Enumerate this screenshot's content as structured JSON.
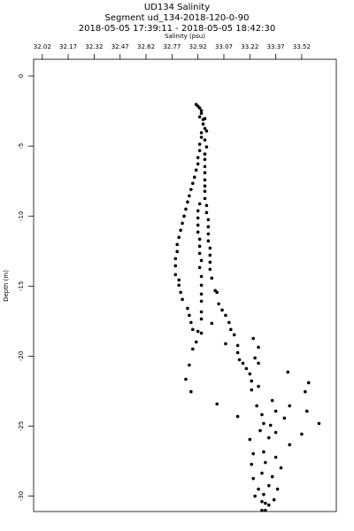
{
  "chart_data": {
    "type": "scatter",
    "title": "UD134 Salinity",
    "subtitle": [
      "Segment ud_134-2018-120-0-90",
      "2018-05-05 17:39:11 - 2018-05-05 18:42:30"
    ],
    "x_label": "Salinity (psu)",
    "y_label": "Depth (m)",
    "color": "#000000",
    "xlim": [
      31.97,
      33.72
    ],
    "ylim": [
      -31.1,
      1.2
    ],
    "xticks": [
      32.02,
      32.17,
      32.32,
      32.47,
      32.62,
      32.77,
      32.92,
      33.07,
      33.22,
      33.37,
      33.52
    ],
    "yticks": [
      0,
      -5,
      -10,
      -15,
      -20,
      -25,
      -30
    ],
    "x": [
      32.91,
      32.92,
      32.93,
      32.94,
      32.94,
      32.93,
      32.95,
      32.96,
      32.95,
      32.96,
      32.94,
      32.97,
      32.94,
      32.96,
      32.93,
      32.97,
      32.93,
      32.96,
      32.92,
      32.96,
      32.92,
      32.96,
      32.91,
      32.96,
      32.9,
      32.96,
      32.89,
      32.96,
      32.88,
      32.96,
      32.87,
      32.96,
      32.86,
      32.93,
      32.97,
      32.85,
      32.92,
      32.97,
      32.84,
      32.92,
      32.98,
      32.83,
      32.92,
      32.98,
      32.82,
      32.92,
      32.98,
      32.81,
      32.93,
      32.98,
      32.8,
      32.93,
      32.99,
      32.8,
      32.93,
      32.99,
      32.79,
      32.94,
      32.99,
      32.79,
      32.93,
      32.99,
      32.79,
      32.94,
      33.0,
      32.81,
      32.81,
      32.94,
      33.02,
      32.82,
      32.94,
      33.03,
      32.83,
      32.94,
      33.04,
      32.86,
      33.06,
      32.94,
      32.87,
      33.08,
      32.94,
      32.88,
      33.1,
      33.0,
      32.89,
      33.11,
      32.92,
      32.94,
      33.13,
      33.24,
      32.91,
      33.15,
      33.27,
      33.08,
      32.89,
      33.15,
      33.25,
      33.16,
      32.87,
      33.18,
      33.27,
      33.2,
      33.22,
      33.44,
      32.85,
      33.23,
      33.56,
      33.27,
      32.88,
      33.23,
      33.54,
      33.35,
      33.03,
      33.26,
      33.45,
      33.37,
      33.55,
      33.15,
      33.29,
      33.42,
      33.3,
      33.34,
      33.62,
      33.28,
      33.37,
      33.52,
      33.22,
      33.33,
      33.45,
      33.24,
      33.3,
      33.37,
      33.31,
      33.4,
      33.23,
      33.29,
      33.35,
      33.24,
      33.33,
      33.27,
      33.38,
      33.3,
      33.25,
      33.36,
      33.29,
      33.31,
      33.33,
      33.29,
      33.31
    ],
    "values": [
      -2.03,
      -2.15,
      -2.28,
      -2.47,
      -2.66,
      -2.91,
      -3.1,
      -3.04,
      -3.42,
      -3.74,
      -4.05,
      -3.92,
      -4.37,
      -4.56,
      -4.87,
      -5.06,
      -5.32,
      -5.57,
      -5.82,
      -5.95,
      -6.27,
      -6.46,
      -6.71,
      -6.9,
      -7.22,
      -7.41,
      -7.66,
      -7.85,
      -8.1,
      -8.23,
      -8.55,
      -8.74,
      -8.99,
      -9.12,
      -9.24,
      -9.5,
      -9.62,
      -9.75,
      -10.0,
      -10.13,
      -10.25,
      -10.51,
      -10.64,
      -10.76,
      -11.01,
      -11.14,
      -11.27,
      -11.52,
      -11.65,
      -11.77,
      -12.03,
      -12.15,
      -12.28,
      -12.53,
      -12.66,
      -12.79,
      -13.04,
      -13.17,
      -13.29,
      -13.55,
      -13.67,
      -13.8,
      -14.18,
      -14.31,
      -14.43,
      -14.56,
      -14.94,
      -14.94,
      -15.32,
      -15.45,
      -15.57,
      -15.45,
      -15.95,
      -16.08,
      -16.27,
      -16.59,
      -16.71,
      -16.84,
      -17.09,
      -17.09,
      -17.35,
      -17.6,
      -17.6,
      -17.66,
      -18.1,
      -18.1,
      -18.23,
      -18.36,
      -18.48,
      -18.74,
      -18.99,
      -19.24,
      -19.37,
      -19.12,
      -19.5,
      -19.75,
      -20.13,
      -20.26,
      -20.64,
      -20.51,
      -20.51,
      -20.89,
      -21.27,
      -21.14,
      -21.65,
      -21.78,
      -21.9,
      -22.16,
      -22.54,
      -22.41,
      -22.54,
      -23.17,
      -23.42,
      -23.55,
      -23.55,
      -23.93,
      -23.93,
      -24.31,
      -24.18,
      -24.43,
      -24.81,
      -24.94,
      -24.81,
      -25.32,
      -25.45,
      -25.57,
      -25.95,
      -25.83,
      -26.33,
      -26.97,
      -26.84,
      -27.22,
      -27.6,
      -27.98,
      -27.73,
      -28.36,
      -28.61,
      -28.74,
      -29.25,
      -29.5,
      -29.5,
      -29.88,
      -30.0,
      -30.26,
      -30.39,
      -30.51,
      -30.64,
      -31.02,
      -31.02
    ]
  }
}
